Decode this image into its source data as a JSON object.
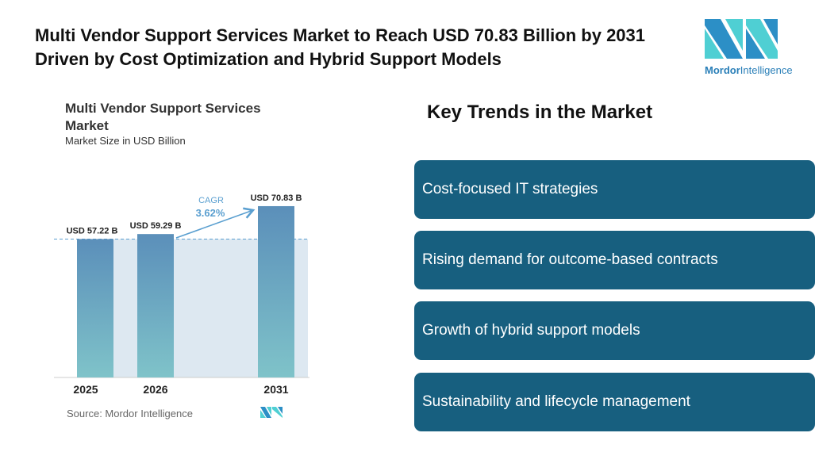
{
  "title": "Multi Vendor Support Services Market to Reach USD 70.83 Billion by 2031 Driven by Cost Optimization and Hybrid Support Models",
  "logo": {
    "brand": "Mordor",
    "suffix": "Intelligence"
  },
  "chart_data": {
    "type": "bar",
    "title": "Multi Vendor Support Services Market",
    "subtitle": "Market Size in USD Billion",
    "categories": [
      "2025",
      "2026",
      "2031"
    ],
    "values": [
      57.22,
      59.29,
      70.83
    ],
    "data_labels": [
      "USD 57.22 B",
      "USD 59.29 B",
      "USD 70.83 B"
    ],
    "annotation": {
      "label": "CAGR",
      "value": "3.62%"
    },
    "ylim": [
      0,
      75
    ],
    "source": "Source: Mordor Intelligence",
    "colors": {
      "bar_top": "#5b8fba",
      "bar_bottom": "#7fc3c9",
      "shade": "#dde8f1",
      "accent": "#5a9fd0"
    }
  },
  "key_trends": {
    "heading": "Key Trends in the Market",
    "items": [
      "Cost-focused IT strategies",
      "Rising demand for outcome-based contracts",
      "Growth of hybrid support models",
      "Sustainability and lifecycle management"
    ]
  }
}
